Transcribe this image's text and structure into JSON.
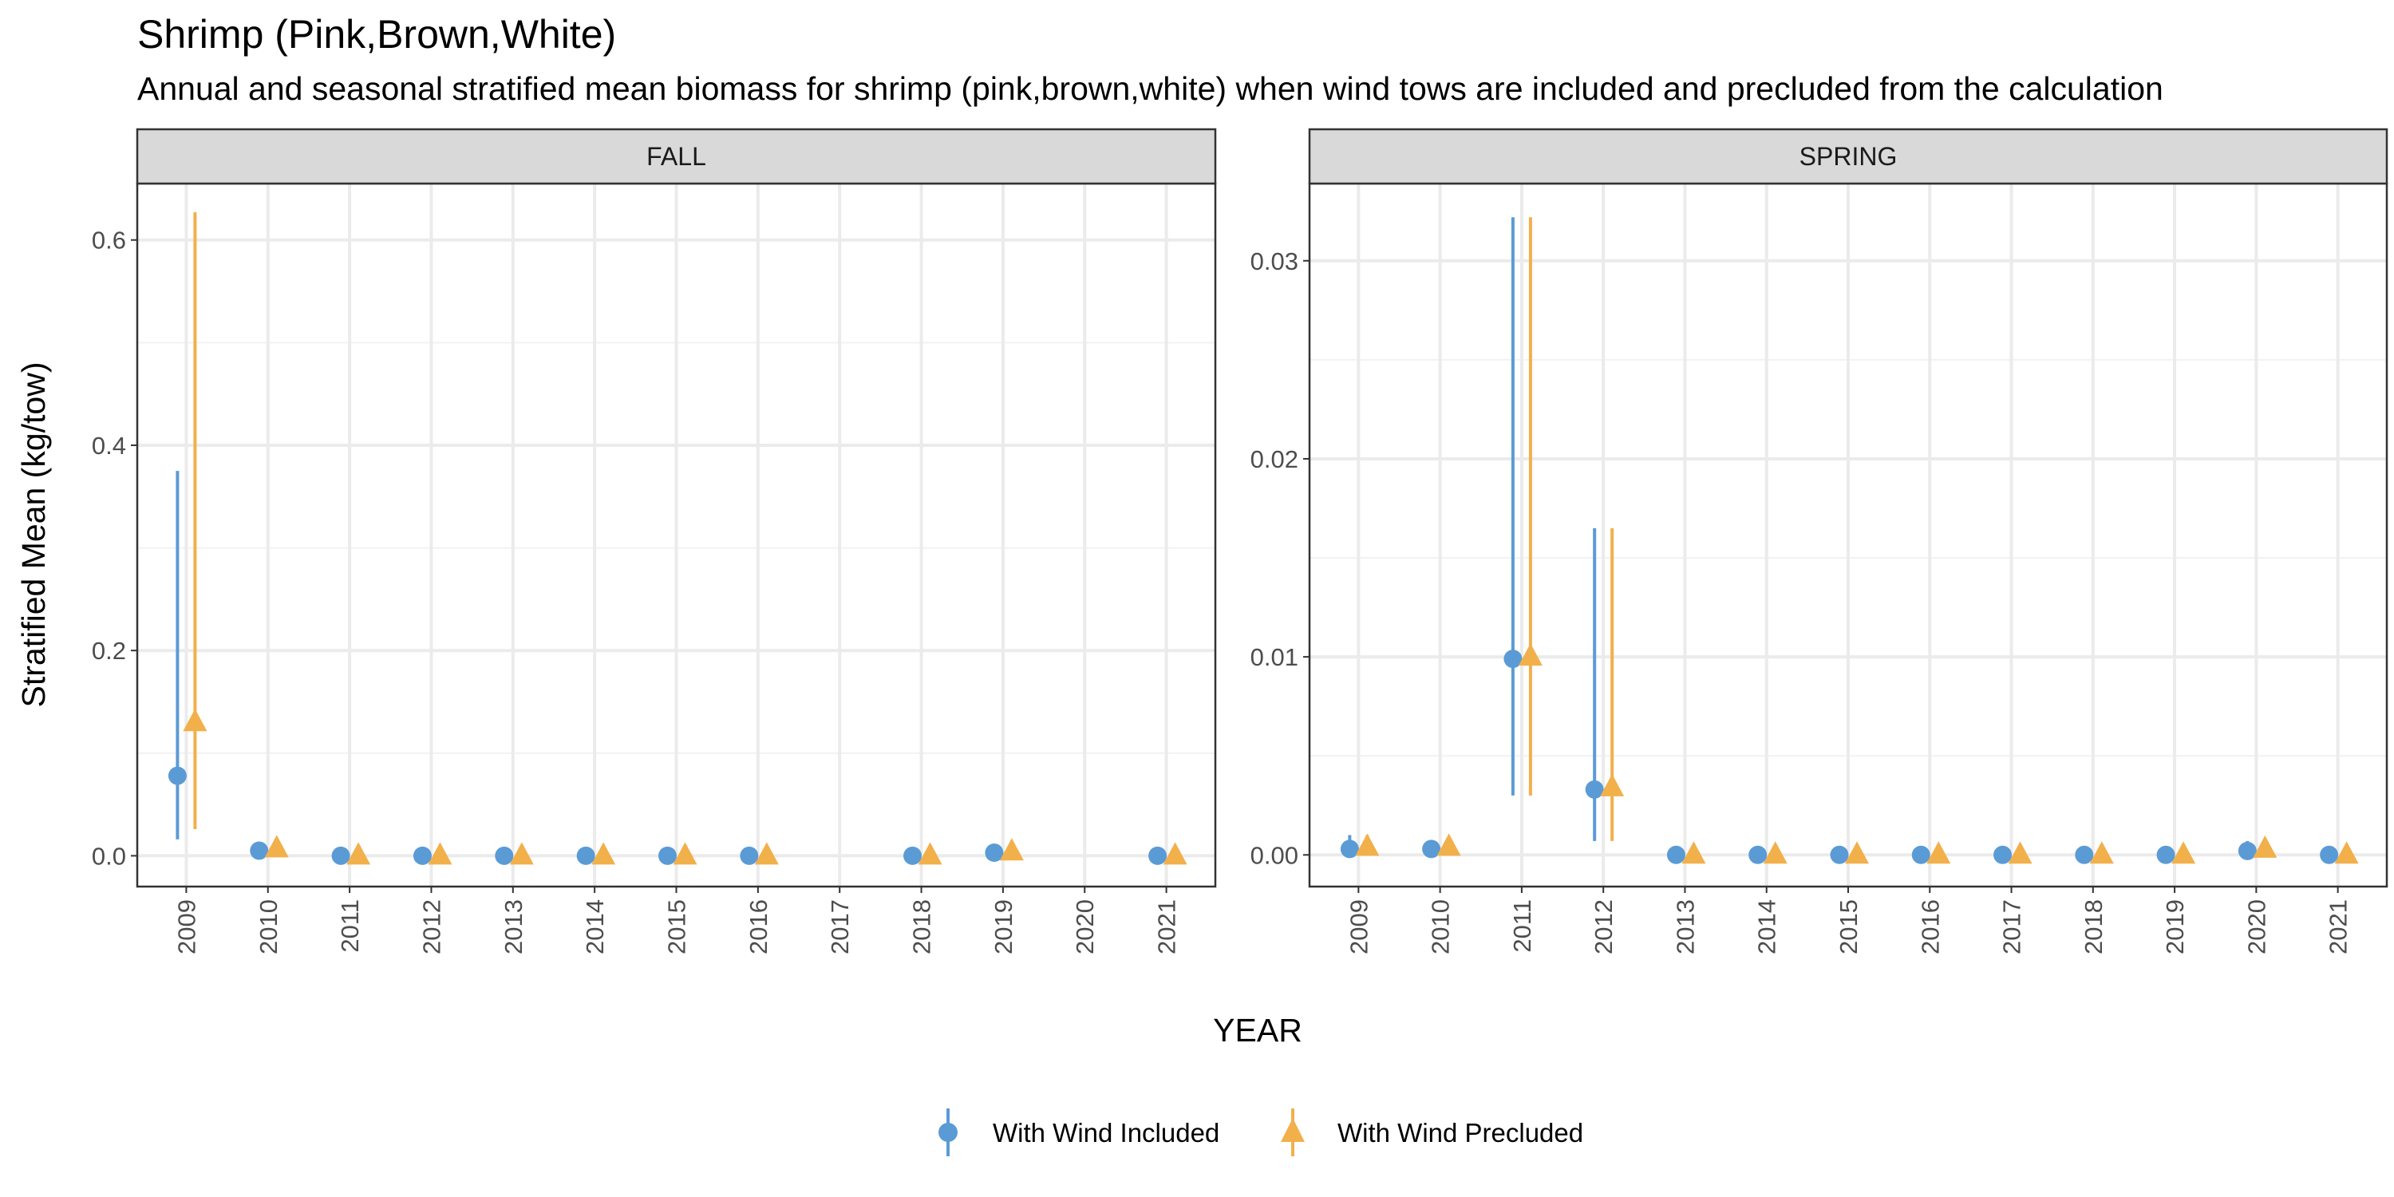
{
  "title": "Shrimp (Pink,Brown,White)",
  "subtitle": "Annual and seasonal stratified mean biomass for shrimp (pink,brown,white) when wind tows are included and precluded from the calculation",
  "colors": {
    "included": "#5b9bd5",
    "precluded": "#f2b04b",
    "strip": "#d9d9d9",
    "grid": "#ebebeb"
  },
  "legend": {
    "position": "bottom",
    "entries": [
      {
        "key": "included",
        "label": "With Wind Included",
        "shape": "circle"
      },
      {
        "key": "precluded",
        "label": "With Wind Precluded",
        "shape": "triangle"
      }
    ]
  },
  "chart_data": {
    "type": "scatter",
    "xlabel": "YEAR",
    "ylabel": "Stratified Mean (kg/tow)",
    "x_ticks": [
      "2009",
      "2010",
      "2011",
      "2012",
      "2013",
      "2014",
      "2015",
      "2016",
      "2017",
      "2018",
      "2019",
      "2020",
      "2021"
    ],
    "grid": true,
    "panels": [
      {
        "label": "FALL",
        "ylim": [
          -0.03,
          0.655
        ],
        "y_ticks": [
          "0.0",
          "0.2",
          "0.4",
          "0.6"
        ],
        "y_tick_values": [
          0,
          0.2,
          0.4,
          0.6
        ],
        "series": [
          {
            "name": "With Wind Included",
            "key": "included",
            "shape": "circle",
            "points": [
              {
                "x": "2009",
                "y": 0.078,
                "ymin": 0.016,
                "ymax": 0.375
              },
              {
                "x": "2010",
                "y": 0.005
              },
              {
                "x": "2011",
                "y": 0.0
              },
              {
                "x": "2012",
                "y": 0.0
              },
              {
                "x": "2013",
                "y": 0.0
              },
              {
                "x": "2014",
                "y": 0.0
              },
              {
                "x": "2015",
                "y": 0.0
              },
              {
                "x": "2016",
                "y": 0.0
              },
              {
                "x": "2018",
                "y": 0.0
              },
              {
                "x": "2019",
                "y": 0.003
              },
              {
                "x": "2021",
                "y": 0.0
              }
            ]
          },
          {
            "name": "With Wind Precluded",
            "key": "precluded",
            "shape": "triangle",
            "points": [
              {
                "x": "2009",
                "y": 0.13,
                "ymin": 0.026,
                "ymax": 0.627
              },
              {
                "x": "2010",
                "y": 0.007
              },
              {
                "x": "2011",
                "y": 0.0
              },
              {
                "x": "2012",
                "y": 0.0
              },
              {
                "x": "2013",
                "y": 0.0
              },
              {
                "x": "2014",
                "y": 0.0
              },
              {
                "x": "2015",
                "y": 0.0
              },
              {
                "x": "2016",
                "y": 0.0
              },
              {
                "x": "2018",
                "y": 0.0
              },
              {
                "x": "2019",
                "y": 0.004
              },
              {
                "x": "2021",
                "y": 0.0
              }
            ]
          }
        ]
      },
      {
        "label": "SPRING",
        "ylim": [
          -0.0016,
          0.0339
        ],
        "y_ticks": [
          "0.00",
          "0.01",
          "0.02",
          "0.03"
        ],
        "y_tick_values": [
          0,
          0.01,
          0.02,
          0.03
        ],
        "series": [
          {
            "name": "With Wind Included",
            "key": "included",
            "shape": "circle",
            "points": [
              {
                "x": "2009",
                "y": 0.0003,
                "ymin": 0.0,
                "ymax": 0.001
              },
              {
                "x": "2010",
                "y": 0.0003
              },
              {
                "x": "2011",
                "y": 0.0099,
                "ymin": 0.003,
                "ymax": 0.0322
              },
              {
                "x": "2012",
                "y": 0.0033,
                "ymin": 0.0007,
                "ymax": 0.0165
              },
              {
                "x": "2013",
                "y": 0.0
              },
              {
                "x": "2014",
                "y": 0.0
              },
              {
                "x": "2015",
                "y": 0.0
              },
              {
                "x": "2016",
                "y": 0.0
              },
              {
                "x": "2017",
                "y": 0.0
              },
              {
                "x": "2018",
                "y": 0.0
              },
              {
                "x": "2019",
                "y": 0.0
              },
              {
                "x": "2020",
                "y": 0.0002,
                "ymin": 0.0,
                "ymax": 0.0007
              },
              {
                "x": "2021",
                "y": 0.0
              }
            ]
          },
          {
            "name": "With Wind Precluded",
            "key": "precluded",
            "shape": "triangle",
            "points": [
              {
                "x": "2009",
                "y": 0.0004,
                "ymin": 0.0,
                "ymax": 0.001
              },
              {
                "x": "2010",
                "y": 0.0004
              },
              {
                "x": "2011",
                "y": 0.01,
                "ymin": 0.003,
                "ymax": 0.0322
              },
              {
                "x": "2012",
                "y": 0.0034,
                "ymin": 0.0007,
                "ymax": 0.0165
              },
              {
                "x": "2013",
                "y": 0.0
              },
              {
                "x": "2014",
                "y": 0.0
              },
              {
                "x": "2015",
                "y": 0.0
              },
              {
                "x": "2016",
                "y": 0.0
              },
              {
                "x": "2017",
                "y": 0.0
              },
              {
                "x": "2018",
                "y": 0.0
              },
              {
                "x": "2019",
                "y": 0.0
              },
              {
                "x": "2020",
                "y": 0.0003,
                "ymin": 0.0,
                "ymax": 0.0007
              },
              {
                "x": "2021",
                "y": 0.0
              }
            ]
          }
        ]
      }
    ]
  }
}
